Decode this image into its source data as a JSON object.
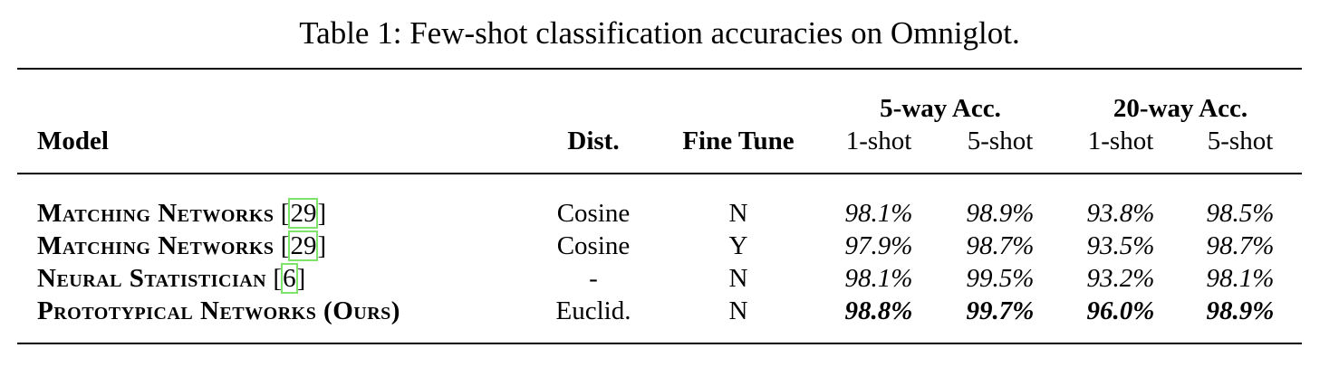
{
  "caption": "Table 1: Few-shot classification accuracies on Omniglot.",
  "colors": {
    "text": "#000000",
    "rule": "#000000",
    "citation_box": "#7de36b"
  },
  "table": {
    "group_headers": {
      "five_way": "5-way Acc.",
      "twenty_way": "20-way Acc."
    },
    "headers": {
      "model": "Model",
      "dist": "Dist.",
      "fine_tune": "Fine Tune",
      "five_way_1shot": "1-shot",
      "five_way_5shot": "5-shot",
      "twenty_way_1shot": "1-shot",
      "twenty_way_5shot": "5-shot"
    },
    "rows": [
      {
        "model": "Matching Networks",
        "cite_open": " [",
        "cite": "29",
        "cite_close": "]",
        "dist": "Cosine",
        "fine_tune": "N",
        "five_1": "98.1%",
        "five_5": "98.9%",
        "twenty_1": "93.8%",
        "twenty_5": "98.5%"
      },
      {
        "model": "Matching Networks",
        "cite_open": " [",
        "cite": "29",
        "cite_close": "]",
        "dist": "Cosine",
        "fine_tune": "Y",
        "five_1": "97.9%",
        "five_5": "98.7%",
        "twenty_1": "93.5%",
        "twenty_5": "98.7%"
      },
      {
        "model": "Neural Statistician",
        "cite_open": " [",
        "cite": "6",
        "cite_close": "]",
        "dist": "-",
        "fine_tune": "N",
        "five_1": "98.1%",
        "five_5": "99.5%",
        "twenty_1": "93.2%",
        "twenty_5": "98.1%"
      },
      {
        "model": "Prototypical Networks (Ours)",
        "dist": "Euclid.",
        "fine_tune": "N",
        "five_1": "98.8%",
        "five_5": "99.7%",
        "twenty_1": "96.0%",
        "twenty_5": "98.9%"
      }
    ]
  }
}
